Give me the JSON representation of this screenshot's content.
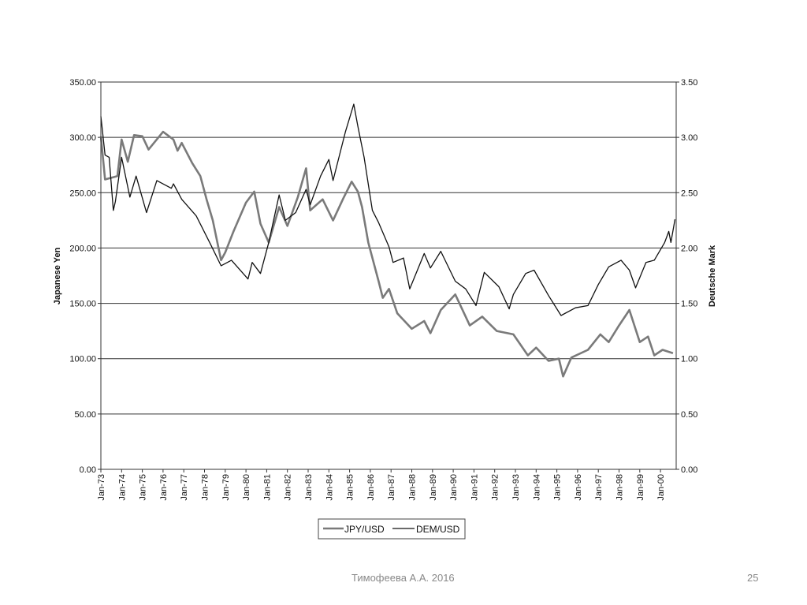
{
  "chart_data": {
    "type": "line",
    "title": "",
    "xlabel": "",
    "ylabel_left": "Japanese Yen",
    "ylabel_right": "Deutsche Mark",
    "ylim_left": [
      0,
      350
    ],
    "ylim_right": [
      0,
      3.5
    ],
    "yticks_left": [
      "0.00",
      "50.00",
      "100.00",
      "150.00",
      "200.00",
      "250.00",
      "300.00",
      "350.00"
    ],
    "yticks_right": [
      "0.00",
      "0.50",
      "1.00",
      "1.50",
      "2.00",
      "2.50",
      "3.00",
      "3.50"
    ],
    "xticks": [
      "Jan-73",
      "Jan-74",
      "Jan-75",
      "Jan-76",
      "Jan-77",
      "Jan-78",
      "Jan-79",
      "Jan-80",
      "Jan-81",
      "Jan-82",
      "Jan-83",
      "Jan-84",
      "Jan-85",
      "Jan-86",
      "Jan-87",
      "Jan-88",
      "Jan-89",
      "Jan-90",
      "Jan-91",
      "Jan-92",
      "Jan-93",
      "Jan-94",
      "Jan-95",
      "Jan-96",
      "Jan-97",
      "Jan-98",
      "Jan-99",
      "Jan-00"
    ],
    "xlim": [
      1973.0,
      2000.75
    ],
    "grid": "horizontal",
    "legend_position": "bottom-center",
    "series": [
      {
        "name": "JPY/USD",
        "axis": "left",
        "color": "#7a7a7a",
        "x": [
          1973.0,
          1973.2,
          1973.8,
          1974.0,
          1974.3,
          1974.6,
          1975.0,
          1975.3,
          1976.0,
          1976.5,
          1976.7,
          1976.9,
          1977.4,
          1977.8,
          1978.1,
          1978.4,
          1978.8,
          1979.0,
          1979.4,
          1980.0,
          1980.4,
          1980.7,
          1981.1,
          1981.6,
          1982.0,
          1982.5,
          1982.9,
          1983.1,
          1983.7,
          1984.2,
          1984.7,
          1985.1,
          1985.4,
          1985.6,
          1985.9,
          1986.4,
          1986.6,
          1986.9,
          1987.3,
          1988.0,
          1988.6,
          1988.9,
          1989.4,
          1990.1,
          1990.8,
          1991.4,
          1992.1,
          1992.9,
          1993.6,
          1994.0,
          1994.6,
          1995.1,
          1995.3,
          1995.7,
          1996.5,
          1997.1,
          1997.5,
          1998.0,
          1998.5,
          1999.0,
          1999.4,
          1999.7,
          2000.1,
          2000.6
        ],
        "values": [
          301,
          262,
          265,
          298,
          278,
          302,
          301,
          289,
          305,
          298,
          288,
          295,
          277,
          265,
          244,
          225,
          189,
          196,
          215,
          241,
          251,
          222,
          205,
          237,
          220,
          246,
          272,
          234,
          244,
          225,
          245,
          260,
          251,
          237,
          205,
          170,
          155,
          163,
          141,
          127,
          134,
          123,
          144,
          158,
          130,
          138,
          125,
          122,
          103,
          110,
          98,
          100,
          84,
          101,
          108,
          122,
          115,
          130,
          144,
          115,
          120,
          103,
          108,
          105
        ]
      },
      {
        "name": "DEM/USD",
        "axis": "right",
        "color": "#111111",
        "x": [
          1973.0,
          1973.2,
          1973.4,
          1973.6,
          1973.7,
          1974.0,
          1974.4,
          1974.7,
          1975.2,
          1975.7,
          1976.4,
          1976.5,
          1976.9,
          1977.6,
          1978.3,
          1978.8,
          1979.3,
          1980.1,
          1980.3,
          1980.7,
          1981.1,
          1981.6,
          1981.9,
          1982.4,
          1982.9,
          1983.1,
          1983.6,
          1984.0,
          1984.2,
          1984.8,
          1985.2,
          1985.4,
          1985.7,
          1986.1,
          1986.4,
          1986.9,
          1987.1,
          1987.6,
          1987.9,
          1988.6,
          1988.9,
          1989.4,
          1990.1,
          1990.6,
          1991.1,
          1991.5,
          1992.2,
          1992.7,
          1992.9,
          1993.5,
          1993.9,
          1994.6,
          1995.2,
          1995.9,
          1996.5,
          1997.0,
          1997.5,
          1998.1,
          1998.5,
          1998.8,
          1999.3,
          1999.7,
          2000.2,
          2000.4,
          2000.5,
          2000.7
        ],
        "values": [
          3.19,
          2.84,
          2.82,
          2.34,
          2.42,
          2.82,
          2.46,
          2.65,
          2.32,
          2.61,
          2.54,
          2.58,
          2.44,
          2.29,
          2.03,
          1.84,
          1.89,
          1.72,
          1.87,
          1.77,
          2.05,
          2.48,
          2.25,
          2.32,
          2.53,
          2.39,
          2.65,
          2.8,
          2.61,
          3.05,
          3.3,
          3.1,
          2.82,
          2.34,
          2.23,
          2.01,
          1.87,
          1.91,
          1.63,
          1.95,
          1.82,
          1.97,
          1.7,
          1.63,
          1.48,
          1.78,
          1.65,
          1.45,
          1.58,
          1.77,
          1.8,
          1.57,
          1.39,
          1.46,
          1.48,
          1.67,
          1.83,
          1.89,
          1.8,
          1.64,
          1.87,
          1.89,
          2.05,
          2.15,
          2.05,
          2.26
        ]
      }
    ]
  },
  "footer": {
    "author": "Тимофеева А.А. 2016",
    "page": "25"
  }
}
